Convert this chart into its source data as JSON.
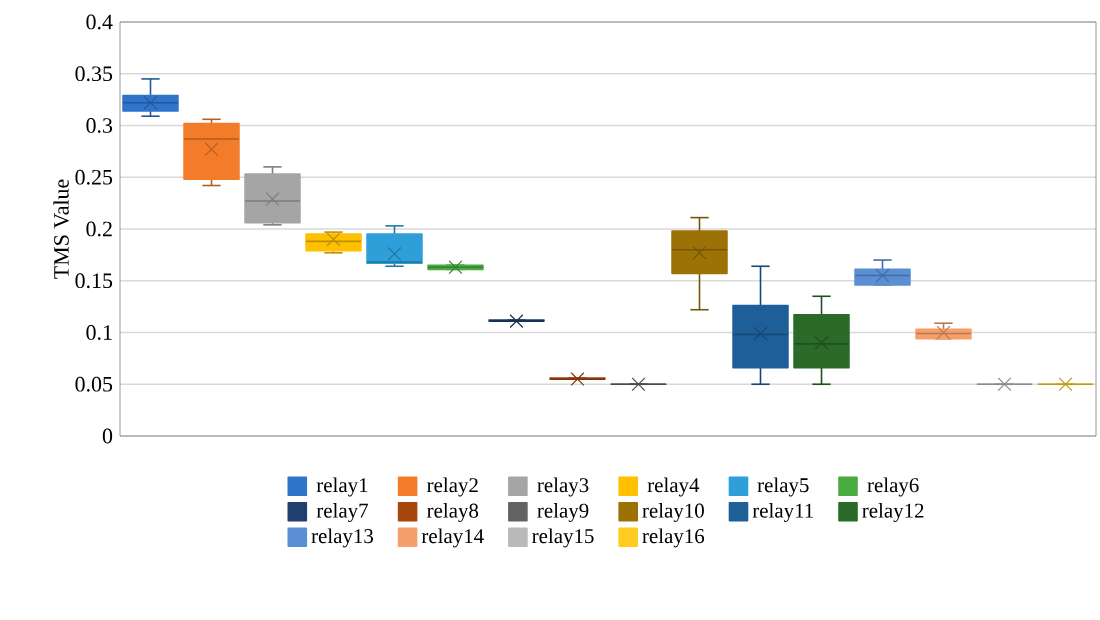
{
  "chart_data": {
    "type": "box",
    "ylabel": "TMS Value",
    "categories": [
      null
    ],
    "ylim": [
      0,
      0.4
    ],
    "yticks": [
      0,
      0.05,
      0.1,
      0.15,
      0.2,
      0.25,
      0.3,
      0.35,
      0.4
    ],
    "grid": "y",
    "legend": "bottom",
    "tick_labels": "y",
    "series": [
      {
        "name": "relay1",
        "color": "#2f75c9",
        "boxes": [
          {
            "low": 0.309,
            "q1": 0.314,
            "median": 0.322,
            "q3": 0.329,
            "high": 0.345,
            "mean": 0.322
          }
        ]
      },
      {
        "name": "relay2",
        "color": "#f37c2b",
        "boxes": [
          {
            "low": 0.242,
            "q1": 0.248,
            "median": 0.287,
            "q3": 0.302,
            "high": 0.306,
            "mean": 0.277
          }
        ]
      },
      {
        "name": "relay3",
        "color": "#a5a5a5",
        "boxes": [
          {
            "low": 0.204,
            "q1": 0.206,
            "median": 0.227,
            "q3": 0.253,
            "high": 0.26,
            "mean": 0.229
          }
        ]
      },
      {
        "name": "relay4",
        "color": "#ffc000",
        "boxes": [
          {
            "low": 0.177,
            "q1": 0.179,
            "median": 0.188,
            "q3": 0.195,
            "high": 0.197,
            "mean": 0.19
          }
        ]
      },
      {
        "name": "relay5",
        "color": "#2e9fd9",
        "boxes": [
          {
            "low": 0.164,
            "q1": 0.167,
            "median": 0.168,
            "q3": 0.195,
            "high": 0.203,
            "mean": 0.176
          }
        ]
      },
      {
        "name": "relay6",
        "color": "#4aab3f",
        "boxes": [
          {
            "low": 0.161,
            "q1": 0.161,
            "median": 0.163,
            "q3": 0.165,
            "high": 0.165,
            "mean": 0.163
          }
        ]
      },
      {
        "name": "relay7",
        "color": "#1f3f6f",
        "boxes": [
          {
            "low": 0.111,
            "q1": 0.111,
            "median": 0.111,
            "q3": 0.112,
            "high": 0.112,
            "mean": 0.111
          }
        ]
      },
      {
        "name": "relay8",
        "color": "#a5470f",
        "boxes": [
          {
            "low": 0.055,
            "q1": 0.055,
            "median": 0.055,
            "q3": 0.056,
            "high": 0.056,
            "mean": 0.055
          }
        ]
      },
      {
        "name": "relay9",
        "color": "#636363",
        "boxes": [
          {
            "low": 0.05,
            "q1": 0.05,
            "median": 0.05,
            "q3": 0.05,
            "high": 0.05,
            "mean": 0.05
          }
        ]
      },
      {
        "name": "relay10",
        "color": "#9c7207",
        "boxes": [
          {
            "low": 0.122,
            "q1": 0.157,
            "median": 0.18,
            "q3": 0.198,
            "high": 0.211,
            "mean": 0.177
          }
        ]
      },
      {
        "name": "relay11",
        "color": "#1e5f99",
        "boxes": [
          {
            "low": 0.05,
            "q1": 0.066,
            "median": 0.098,
            "q3": 0.126,
            "high": 0.164,
            "mean": 0.099
          }
        ]
      },
      {
        "name": "relay12",
        "color": "#2a6b2a",
        "boxes": [
          {
            "low": 0.05,
            "q1": 0.066,
            "median": 0.089,
            "q3": 0.117,
            "high": 0.135,
            "mean": 0.09
          }
        ]
      },
      {
        "name": "relay13",
        "color": "#5b8fd4",
        "boxes": [
          {
            "low": 0.146,
            "q1": 0.146,
            "median": 0.155,
            "q3": 0.161,
            "high": 0.17,
            "mean": 0.155
          }
        ]
      },
      {
        "name": "relay14",
        "color": "#f5a06c",
        "boxes": [
          {
            "low": 0.094,
            "q1": 0.094,
            "median": 0.099,
            "q3": 0.103,
            "high": 0.109,
            "mean": 0.1
          }
        ]
      },
      {
        "name": "relay15",
        "color": "#b9b9b9",
        "boxes": [
          {
            "low": 0.05,
            "q1": 0.05,
            "median": 0.05,
            "q3": 0.05,
            "high": 0.05,
            "mean": 0.05
          }
        ]
      },
      {
        "name": "relay16",
        "color": "#ffcc22",
        "boxes": [
          {
            "low": 0.05,
            "q1": 0.05,
            "median": 0.05,
            "q3": 0.05,
            "high": 0.05,
            "mean": 0.05
          }
        ]
      }
    ]
  }
}
